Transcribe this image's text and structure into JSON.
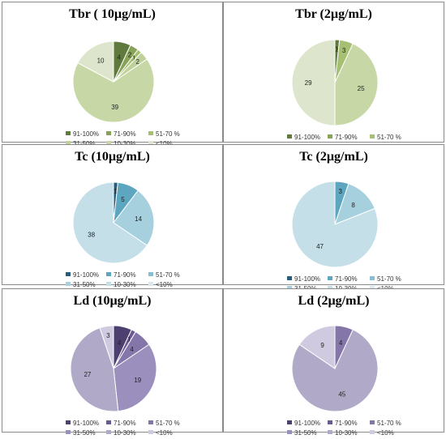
{
  "legend_labels": [
    "91-100%",
    "71-90%",
    "51-70 %",
    "31-50%",
    "10-30%",
    "<10%"
  ],
  "chart_data": [
    {
      "type": "pie",
      "title": "Tbr ( 10µg/mL)",
      "categories": [
        "91-100%",
        "71-90%",
        "51-70 %",
        "31-50%",
        "10-30%",
        "<10%"
      ],
      "values": [
        4,
        2,
        1,
        2,
        39,
        10
      ],
      "colors": [
        "#5f7a3c",
        "#87a357",
        "#a5c073",
        "#bfd19a",
        "#c7d8a6",
        "#dde6cc"
      ]
    },
    {
      "type": "pie",
      "title": "Tbr (2µg/mL)",
      "categories": [
        "91-100%",
        "71-90%",
        "51-70 %",
        "31-50%",
        "10-30%",
        "<10%"
      ],
      "values": [
        1,
        0,
        3,
        0,
        25,
        29
      ],
      "colors": [
        "#5f7a3c",
        "#87a357",
        "#a5c073",
        "#bfd19a",
        "#c7d8a6",
        "#dde6cc"
      ]
    },
    {
      "type": "pie",
      "title": "Tc (10µg/mL)",
      "categories": [
        "91-100%",
        "71-90%",
        "51-70 %",
        "31-50%",
        "10-30%",
        "<10%"
      ],
      "values": [
        1,
        5,
        0,
        14,
        38,
        0
      ],
      "colors": [
        "#255d7a",
        "#5da6bf",
        "#86bfd2",
        "#a6d0de",
        "#c4dfe8",
        "#d8eaf0"
      ]
    },
    {
      "type": "pie",
      "title": "Tc (2µg/mL)",
      "categories": [
        "91-100%",
        "71-90%",
        "51-70 %",
        "31-50%",
        "10-30%",
        "<10%"
      ],
      "values": [
        0,
        3,
        0,
        8,
        47,
        0
      ],
      "colors": [
        "#255d7a",
        "#5da6bf",
        "#86bfd2",
        "#a6d0de",
        "#c4dfe8",
        "#d8eaf0"
      ]
    },
    {
      "type": "pie",
      "title": "Ld (10µg/mL)",
      "categories": [
        "91-100%",
        "71-90%",
        "51-70 %",
        "31-50%",
        "10-30%",
        "<10%"
      ],
      "values": [
        4,
        1,
        4,
        19,
        27,
        3
      ],
      "colors": [
        "#4d3f70",
        "#6a5a92",
        "#8576aa",
        "#9b8fbe",
        "#b0aac8",
        "#cfcadf"
      ]
    },
    {
      "type": "pie",
      "title": "Ld (2µg/mL)",
      "categories": [
        "91-100%",
        "71-90%",
        "51-70 %",
        "31-50%",
        "10-30%",
        "<10%"
      ],
      "values": [
        0,
        0,
        4,
        0,
        45,
        9
      ],
      "colors": [
        "#4d3f70",
        "#6a5a92",
        "#8576aa",
        "#9b8fbe",
        "#b0aac8",
        "#cfcadf"
      ]
    }
  ]
}
